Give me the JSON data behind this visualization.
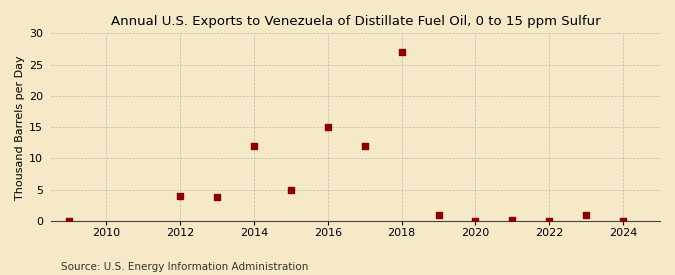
{
  "title": "Annual U.S. Exports to Venezuela of Distillate Fuel Oil, 0 to 15 ppm Sulfur",
  "ylabel": "Thousand Barrels per Day",
  "source": "Source: U.S. Energy Information Administration",
  "background_color": "#f5e9c8",
  "plot_bg_color": "#f5e9c8",
  "x_data": [
    2009,
    2012,
    2013,
    2014,
    2015,
    2016,
    2017,
    2018,
    2019,
    2020,
    2021,
    2022,
    2023,
    2024
  ],
  "y_data": [
    0,
    4,
    3.8,
    12,
    5,
    15,
    12,
    27,
    1,
    0.05,
    0.15,
    0.05,
    1,
    0.05
  ],
  "marker_color": "#8b0000",
  "marker_size": 4,
  "xlim": [
    2008.5,
    2025
  ],
  "ylim": [
    0,
    30
  ],
  "yticks": [
    0,
    5,
    10,
    15,
    20,
    25,
    30
  ],
  "xticks": [
    2010,
    2012,
    2014,
    2016,
    2018,
    2020,
    2022,
    2024
  ],
  "grid_color": "#bbbbbb",
  "title_fontsize": 9.5,
  "label_fontsize": 8,
  "tick_fontsize": 8,
  "source_fontsize": 7.5
}
